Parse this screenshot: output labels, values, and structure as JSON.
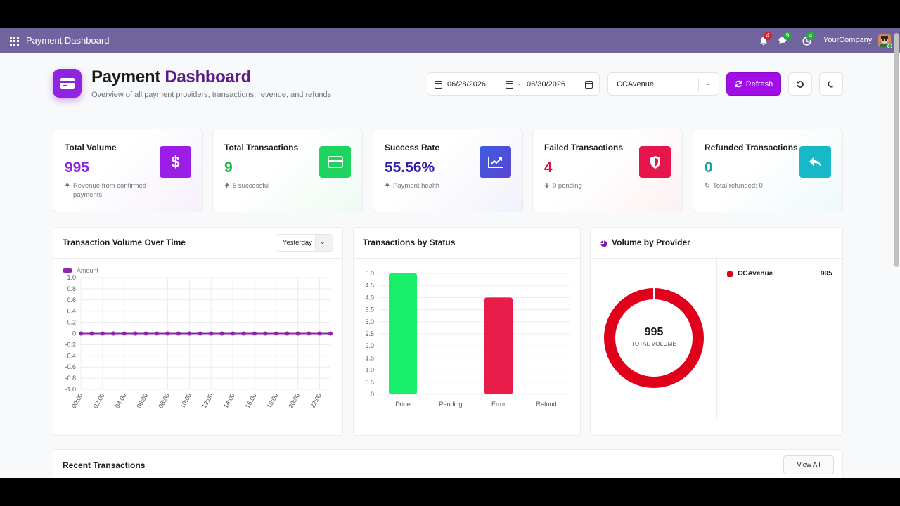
{
  "navbar": {
    "title": "Payment Dashboard",
    "notifications_count": "4",
    "messages_count": "9",
    "activities_count": "4",
    "company": "YourCompany"
  },
  "header": {
    "title_part1": "Payment",
    "title_part2": "Dashboard",
    "subtitle": "Overview of all payment providers, transactions, revenue, and refunds",
    "date_from": "06/28/2026",
    "date_separator": "-",
    "date_to": "06/30/2026",
    "provider": "CCAvenue",
    "refresh_label": "Refresh"
  },
  "kpis": [
    {
      "label": "Total Volume",
      "value": "995",
      "foot": "Revenue from confirmed payments",
      "value_color": "#8e24e0",
      "icon": "dollar-icon",
      "icon_bg": "#9b1de6"
    },
    {
      "label": "Total Transactions",
      "value": "9",
      "foot": "5 successful",
      "value_color": "#1fb64d",
      "icon": "credit-card-icon",
      "icon_bg": "#1fd45e"
    },
    {
      "label": "Success Rate",
      "value": "55.56%",
      "foot": "Payment health",
      "value_color": "#2f1fa8",
      "icon": "trend-up-icon",
      "icon_bg": "#4b55d9"
    },
    {
      "label": "Failed Transactions",
      "value": "4",
      "foot": "0 pending",
      "value_color": "#e01c4c",
      "icon": "shield-icon",
      "icon_bg": "#e6164c"
    },
    {
      "label": "Refunded Transactions",
      "value": "0",
      "foot": "Total refunded: 0",
      "value_color": "#18a3a3",
      "icon": "reply-icon",
      "icon_bg": "#17b9c9"
    }
  ],
  "volume_chart": {
    "title": "Transaction Volume Over Time",
    "period": "Yesterday",
    "legend": "Amount",
    "color": "#8e24aa"
  },
  "status_chart": {
    "title": "Transactions by Status"
  },
  "provider_chart": {
    "title": "Volume by Provider",
    "center_value": "995",
    "center_label": "TOTAL VOLUME",
    "legend_name": "CCAvenue",
    "legend_value": "995",
    "color": "#e0001b"
  },
  "recent": {
    "title": "Recent Transactions",
    "view_all": "View All"
  },
  "chart_data": [
    {
      "type": "line",
      "x": [
        "00:00",
        "01:00",
        "02:00",
        "03:00",
        "04:00",
        "05:00",
        "06:00",
        "07:00",
        "08:00",
        "09:00",
        "10:00",
        "11:00",
        "12:00",
        "13:00",
        "14:00",
        "15:00",
        "16:00",
        "17:00",
        "18:00",
        "19:00",
        "20:00",
        "21:00",
        "22:00",
        "23:00"
      ],
      "tick_labels": [
        "00:00",
        "02:00",
        "04:00",
        "06:00",
        "08:00",
        "10:00",
        "12:00",
        "14:00",
        "16:00",
        "18:00",
        "20:00",
        "22:00"
      ],
      "series": [
        {
          "name": "Amount",
          "values": [
            0,
            0,
            0,
            0,
            0,
            0,
            0,
            0,
            0,
            0,
            0,
            0,
            0,
            0,
            0,
            0,
            0,
            0,
            0,
            0,
            0,
            0,
            0,
            0
          ]
        }
      ],
      "ylim": [
        -1.0,
        1.0
      ],
      "yticks": [
        "1.0",
        "0.8",
        "0.6",
        "0.4",
        "0.2",
        "0",
        "-0.2",
        "-0.4",
        "-0.6",
        "-0.8",
        "-1.0"
      ]
    },
    {
      "type": "bar",
      "categories": [
        "Done",
        "Pending",
        "Error",
        "Refund"
      ],
      "values": [
        5,
        0,
        4,
        0
      ],
      "colors": [
        "#17ef6b",
        "#cccccc",
        "#e81c48",
        "#cccccc"
      ],
      "ylim": [
        0,
        5
      ],
      "yticks": [
        "5.0",
        "4.5",
        "4.0",
        "3.5",
        "3.0",
        "2.5",
        "2.0",
        "1.5",
        "1.0",
        "0.5",
        "0"
      ]
    },
    {
      "type": "pie",
      "categories": [
        "CCAvenue"
      ],
      "values": [
        995
      ]
    }
  ]
}
